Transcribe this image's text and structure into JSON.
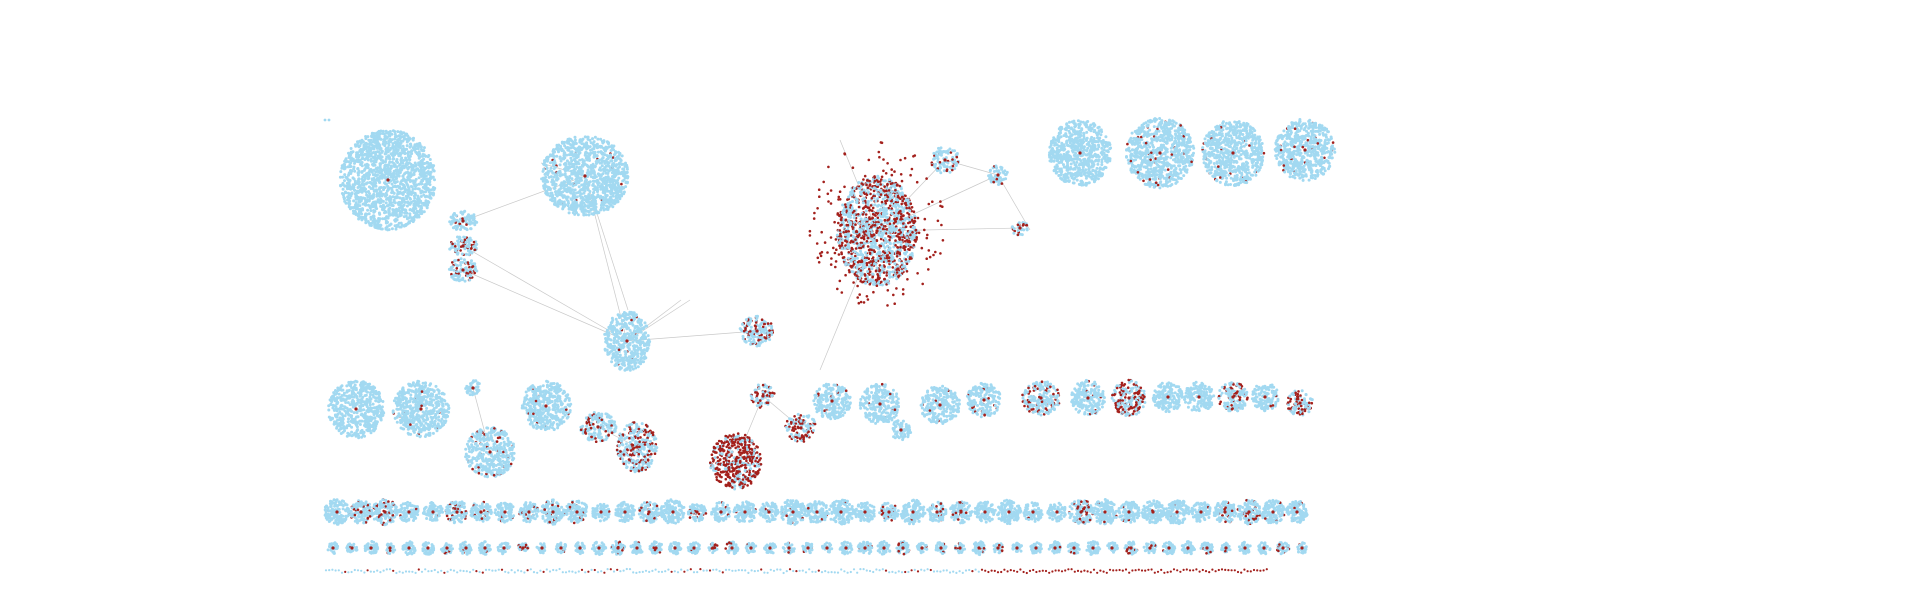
{
  "diagram": {
    "type": "network-graph",
    "labels_shown": false,
    "colors": {
      "background": "#ffffff",
      "node_primary": "#a2d9f1",
      "node_secondary": "#a3201c",
      "edge": "#c9c9c9"
    }
  }
}
